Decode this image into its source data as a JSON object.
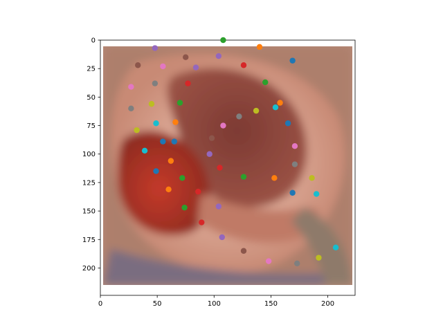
{
  "chart_data": {
    "type": "scatter",
    "title": "",
    "xlabel": "",
    "ylabel": "",
    "xlim": [
      0,
      224
    ],
    "ylim": [
      224,
      0
    ],
    "y_inverted": true,
    "grid": false,
    "legend": "none",
    "background_image": "ear-closeup-photo",
    "x_ticks": [
      0,
      50,
      100,
      150,
      200
    ],
    "y_ticks": [
      0,
      25,
      50,
      75,
      100,
      125,
      150,
      175,
      200
    ],
    "points": [
      {
        "x": 108,
        "y": 0,
        "color": "#2ca02c"
      },
      {
        "x": 48,
        "y": 7,
        "color": "#9467bd"
      },
      {
        "x": 140,
        "y": 6,
        "color": "#ff7f0e"
      },
      {
        "x": 75,
        "y": 15,
        "color": "#8c564b"
      },
      {
        "x": 104,
        "y": 14,
        "color": "#9467bd"
      },
      {
        "x": 169,
        "y": 18,
        "color": "#1f77b4"
      },
      {
        "x": 33,
        "y": 22,
        "color": "#8c564b"
      },
      {
        "x": 55,
        "y": 23,
        "color": "#e377c2"
      },
      {
        "x": 84,
        "y": 24,
        "color": "#9467bd"
      },
      {
        "x": 126,
        "y": 22,
        "color": "#d62728"
      },
      {
        "x": 145,
        "y": 37,
        "color": "#2ca02c"
      },
      {
        "x": 48,
        "y": 38,
        "color": "#7f7f7f"
      },
      {
        "x": 77,
        "y": 38,
        "color": "#d62728"
      },
      {
        "x": 27,
        "y": 41,
        "color": "#e377c2"
      },
      {
        "x": 158,
        "y": 55,
        "color": "#ff7f0e"
      },
      {
        "x": 70,
        "y": 55,
        "color": "#2ca02c"
      },
      {
        "x": 45,
        "y": 56,
        "color": "#bcbd22"
      },
      {
        "x": 154,
        "y": 59,
        "color": "#17becf"
      },
      {
        "x": 27,
        "y": 60,
        "color": "#7f7f7f"
      },
      {
        "x": 137,
        "y": 62,
        "color": "#bcbd22"
      },
      {
        "x": 122,
        "y": 67,
        "color": "#7f7f7f"
      },
      {
        "x": 66,
        "y": 72,
        "color": "#ff7f0e"
      },
      {
        "x": 49,
        "y": 73,
        "color": "#17becf"
      },
      {
        "x": 108,
        "y": 75,
        "color": "#e377c2"
      },
      {
        "x": 165,
        "y": 73,
        "color": "#1f77b4"
      },
      {
        "x": 32,
        "y": 79,
        "color": "#bcbd22"
      },
      {
        "x": 98,
        "y": 86,
        "color": "#8c564b"
      },
      {
        "x": 55,
        "y": 89,
        "color": "#1f77b4"
      },
      {
        "x": 65,
        "y": 89,
        "color": "#1f77b4"
      },
      {
        "x": 171,
        "y": 93,
        "color": "#e377c2"
      },
      {
        "x": 39,
        "y": 97,
        "color": "#17becf"
      },
      {
        "x": 96,
        "y": 100,
        "color": "#9467bd"
      },
      {
        "x": 62,
        "y": 106,
        "color": "#ff7f0e"
      },
      {
        "x": 171,
        "y": 109,
        "color": "#7f7f7f"
      },
      {
        "x": 105,
        "y": 112,
        "color": "#d62728"
      },
      {
        "x": 49,
        "y": 115,
        "color": "#1f77b4"
      },
      {
        "x": 126,
        "y": 120,
        "color": "#2ca02c"
      },
      {
        "x": 72,
        "y": 121,
        "color": "#2ca02c"
      },
      {
        "x": 153,
        "y": 121,
        "color": "#ff7f0e"
      },
      {
        "x": 186,
        "y": 121,
        "color": "#bcbd22"
      },
      {
        "x": 60,
        "y": 131,
        "color": "#ff7f0e"
      },
      {
        "x": 86,
        "y": 133,
        "color": "#d62728"
      },
      {
        "x": 169,
        "y": 134,
        "color": "#1f77b4"
      },
      {
        "x": 190,
        "y": 135,
        "color": "#17becf"
      },
      {
        "x": 74,
        "y": 147,
        "color": "#2ca02c"
      },
      {
        "x": 104,
        "y": 146,
        "color": "#9467bd"
      },
      {
        "x": 89,
        "y": 160,
        "color": "#d62728"
      },
      {
        "x": 107,
        "y": 173,
        "color": "#9467bd"
      },
      {
        "x": 207,
        "y": 182,
        "color": "#17becf"
      },
      {
        "x": 126,
        "y": 185,
        "color": "#8c564b"
      },
      {
        "x": 148,
        "y": 194,
        "color": "#e377c2"
      },
      {
        "x": 173,
        "y": 196,
        "color": "#7f7f7f"
      },
      {
        "x": 192,
        "y": 191,
        "color": "#bcbd22"
      }
    ]
  }
}
